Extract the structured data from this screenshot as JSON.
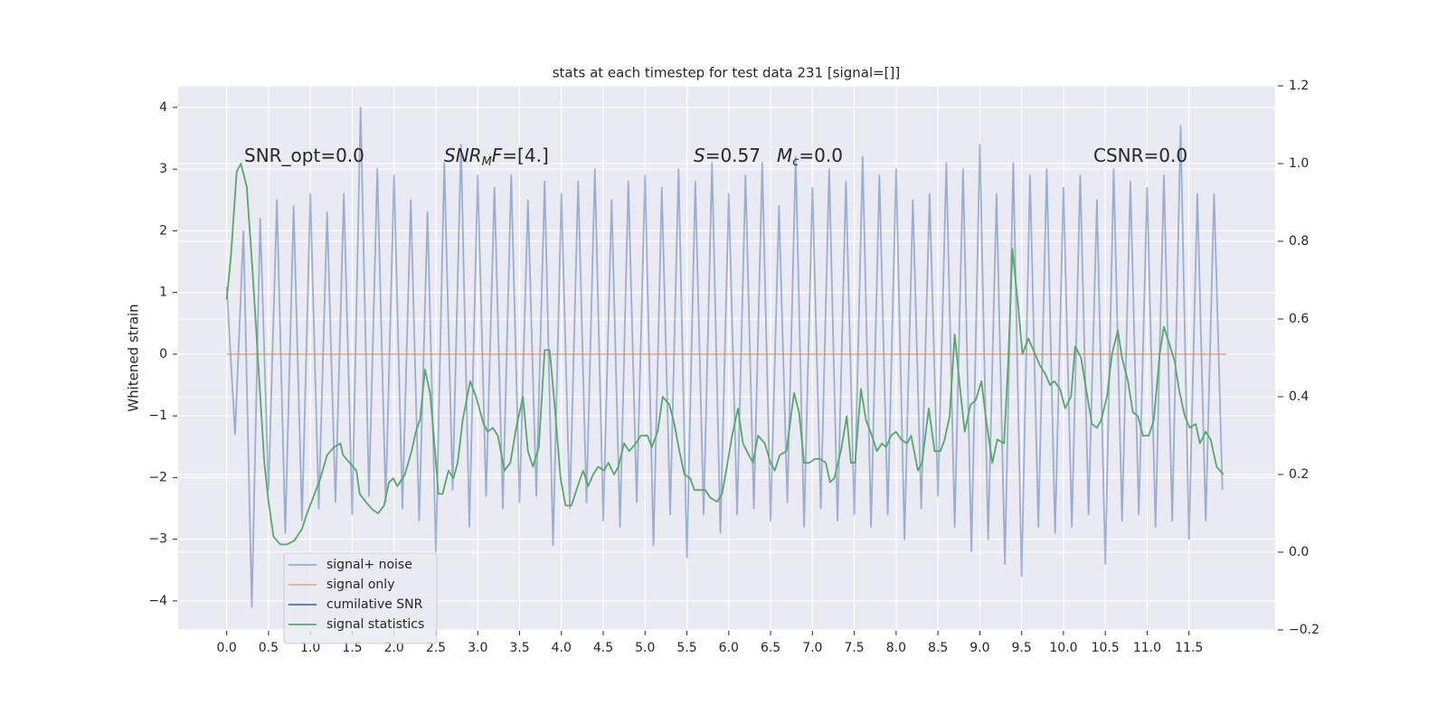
{
  "chart_data": {
    "type": "line",
    "title": "stats at each timestep for test data 231 [signal=[]]",
    "ylabel": "Whitened strain",
    "xlim": [
      -0.58,
      12.53
    ],
    "ylim": [
      -4.47,
      4.35
    ],
    "y2lim": [
      -0.2,
      1.2
    ],
    "xticks": [
      {
        "value": 0,
        "label": "0.0"
      },
      0.5,
      {
        "value": 1,
        "label": "1.0"
      },
      1.5,
      {
        "value": 2,
        "label": "2.0"
      },
      2.5,
      {
        "value": 3,
        "label": "3.0"
      },
      3.5,
      {
        "value": 4,
        "label": "4.0"
      },
      4.5,
      {
        "value": 5,
        "label": "5.0"
      },
      5.5,
      {
        "value": 6,
        "label": "6.0"
      },
      6.5,
      {
        "value": 7,
        "label": "7.0"
      },
      7.5,
      {
        "value": 8,
        "label": "8.0"
      },
      8.5,
      {
        "value": 9,
        "label": "9.0"
      },
      9.5,
      {
        "value": 10,
        "label": "10.0"
      },
      10.5,
      {
        "value": 11,
        "label": "11.0"
      },
      11.5
    ],
    "yticks": [
      {
        "value": -4,
        "label": "−4"
      },
      {
        "value": -3,
        "label": "−3"
      },
      {
        "value": -2,
        "label": "−2"
      },
      {
        "value": -1,
        "label": "−1"
      },
      0,
      1,
      2,
      3,
      4
    ],
    "y2ticks": [
      {
        "value": -0.2,
        "label": "−0.2"
      },
      {
        "value": 0,
        "label": "0.0"
      },
      0.2,
      0.4,
      0.6,
      0.8,
      {
        "value": 1,
        "label": "1.0"
      },
      1.2
    ],
    "grid": true,
    "legend": "lower left",
    "annotations": [
      {
        "parts": [
          {
            "text": "SNR_opt=0.0"
          }
        ]
      },
      {
        "parts": [
          {
            "text": "SNR",
            "italic": true
          },
          {
            "text": "M",
            "italic": true,
            "sub": true
          },
          {
            "text": "F",
            "italic": true
          },
          {
            "text": "=[4.]"
          }
        ]
      },
      {
        "parts": [
          {
            "text": "S",
            "italic": true
          },
          {
            "text": "=0.57"
          }
        ]
      },
      {
        "parts": [
          {
            "text": "M",
            "italic": true
          },
          {
            "text": "c",
            "italic": true,
            "sub": true
          },
          {
            "text": "=0.0"
          }
        ]
      },
      {
        "parts": [
          {
            "text": "CSNR=0.0"
          }
        ]
      }
    ],
    "series": [
      {
        "name": "signal+ noise",
        "color": "#4c72b0",
        "opacity": 0.5,
        "x": [
          0.0,
          0.1,
          0.2,
          0.3,
          0.4,
          0.5,
          0.6,
          0.7,
          0.8,
          0.9,
          1.0,
          1.1,
          1.2,
          1.3,
          1.4,
          1.5,
          1.6,
          1.7,
          1.8,
          1.9,
          2.0,
          2.1,
          2.2,
          2.3,
          2.4,
          2.5,
          2.6,
          2.7,
          2.8,
          2.9,
          3.0,
          3.1,
          3.2,
          3.3,
          3.4,
          3.5,
          3.6,
          3.7,
          3.8,
          3.9,
          4.0,
          4.1,
          4.2,
          4.3,
          4.4,
          4.5,
          4.6,
          4.7,
          4.8,
          4.9,
          5.0,
          5.1,
          5.2,
          5.3,
          5.4,
          5.5,
          5.6,
          5.7,
          5.8,
          5.9,
          6.0,
          6.1,
          6.2,
          6.3,
          6.4,
          6.5,
          6.6,
          6.7,
          6.8,
          6.9,
          7.0,
          7.1,
          7.2,
          7.3,
          7.4,
          7.5,
          7.6,
          7.7,
          7.8,
          7.9,
          8.0,
          8.1,
          8.2,
          8.3,
          8.4,
          8.5,
          8.6,
          8.7,
          8.8,
          8.9,
          9.0,
          9.1,
          9.2,
          9.3,
          9.4,
          9.5,
          9.6,
          9.7,
          9.8,
          9.9,
          10.0,
          10.1,
          10.2,
          10.3,
          10.4,
          10.5,
          10.6,
          10.7,
          10.8,
          10.9,
          11.0,
          11.1,
          11.2,
          11.3,
          11.4,
          11.5,
          11.6,
          11.7,
          11.8,
          11.9
        ],
        "values": [
          1.1,
          -1.3,
          2.0,
          -4.1,
          2.2,
          -2.2,
          2.5,
          -2.9,
          2.4,
          -2.7,
          2.6,
          -2.5,
          2.3,
          -2.4,
          2.6,
          -2.6,
          4.0,
          -2.3,
          3.0,
          -2.4,
          2.9,
          -2.5,
          2.5,
          -2.7,
          2.3,
          -3.2,
          3.1,
          -2.2,
          3.4,
          -2.8,
          2.9,
          -2.3,
          2.7,
          -2.5,
          2.9,
          -2.4,
          2.5,
          -2.3,
          2.8,
          -3.1,
          2.6,
          -2.5,
          2.8,
          -2.4,
          3.0,
          -2.7,
          2.5,
          -2.8,
          2.8,
          -2.4,
          2.9,
          -3.1,
          2.7,
          -2.6,
          3.0,
          -3.3,
          2.8,
          -2.6,
          3.1,
          -2.9,
          2.6,
          -2.6,
          2.9,
          -2.5,
          3.1,
          -2.7,
          2.4,
          -2.4,
          3.2,
          -2.8,
          2.7,
          -2.5,
          3.0,
          -2.7,
          2.8,
          -2.6,
          3.2,
          -2.8,
          2.9,
          -2.6,
          3.0,
          -3.0,
          2.5,
          -2.5,
          2.6,
          -2.3,
          3.1,
          -2.8,
          3.0,
          -3.2,
          3.4,
          -3.0,
          2.6,
          -3.4,
          3.1,
          -3.6,
          2.9,
          -2.8,
          3.0,
          -2.9,
          2.7,
          -2.8,
          2.9,
          -2.6,
          2.5,
          -3.4,
          3.0,
          -2.7,
          2.8,
          -2.6,
          2.7,
          -2.8,
          2.9,
          -2.7,
          3.7,
          -3.0,
          2.6,
          -2.7,
          2.6,
          -2.2
        ]
      },
      {
        "name": "signal only",
        "color": "#dd8452",
        "opacity": 0.6,
        "x": [
          0,
          11.95
        ],
        "values": [
          0,
          0
        ]
      },
      {
        "name": "cumilative SNR",
        "color": "#4c72b0",
        "x": [],
        "values": []
      },
      {
        "name": "signal statistics",
        "color": "#55a868",
        "axis": "y2",
        "x": [
          0,
          0.05,
          0.12,
          0.17,
          0.24,
          0.31,
          0.39,
          0.45,
          0.5,
          0.56,
          0.64,
          0.72,
          0.81,
          0.9,
          0.96,
          1.05,
          1.12,
          1.2,
          1.28,
          1.36,
          1.39,
          1.47,
          1.55,
          1.59,
          1.66,
          1.74,
          1.81,
          1.88,
          1.94,
          1.99,
          2.04,
          2.13,
          2.21,
          2.26,
          2.31,
          2.37,
          2.43,
          2.49,
          2.53,
          2.58,
          2.65,
          2.71,
          2.76,
          2.82,
          2.91,
          2.98,
          3.07,
          3.12,
          3.18,
          3.24,
          3.32,
          3.39,
          3.46,
          3.54,
          3.6,
          3.66,
          3.73,
          3.8,
          3.86,
          3.91,
          3.99,
          4.05,
          4.12,
          4.21,
          4.26,
          4.32,
          4.38,
          4.44,
          4.51,
          4.56,
          4.63,
          4.68,
          4.75,
          4.81,
          4.89,
          4.95,
          5.03,
          5.08,
          5.15,
          5.21,
          5.29,
          5.35,
          5.41,
          5.47,
          5.54,
          5.59,
          5.65,
          5.72,
          5.78,
          5.86,
          5.92,
          5.97,
          6.04,
          6.11,
          6.17,
          6.24,
          6.29,
          6.35,
          6.43,
          6.5,
          6.55,
          6.61,
          6.69,
          6.78,
          6.84,
          6.9,
          6.96,
          7.03,
          7.09,
          7.16,
          7.21,
          7.26,
          7.34,
          7.41,
          7.46,
          7.51,
          7.58,
          7.64,
          7.71,
          7.77,
          7.83,
          7.88,
          7.94,
          8.0,
          8.06,
          8.13,
          8.18,
          8.26,
          8.31,
          8.39,
          8.46,
          8.53,
          8.58,
          8.64,
          8.7,
          8.76,
          8.82,
          8.89,
          8.95,
          9.02,
          9.07,
          9.15,
          9.21,
          9.29,
          9.34,
          9.39,
          9.46,
          9.51,
          9.58,
          9.64,
          9.72,
          9.78,
          9.84,
          9.89,
          9.96,
          10.02,
          10.09,
          10.14,
          10.21,
          10.27,
          10.34,
          10.4,
          10.45,
          10.52,
          10.58,
          10.65,
          10.7,
          10.77,
          10.83,
          10.89,
          10.95,
          11.02,
          11.08,
          11.15,
          11.2,
          11.26,
          11.33,
          11.38,
          11.45,
          11.51,
          11.58,
          11.63,
          11.7,
          11.76,
          11.83,
          11.91
        ],
        "values": [
          0.65,
          0.76,
          0.98,
          1.0,
          0.94,
          0.72,
          0.44,
          0.23,
          0.13,
          0.04,
          0.02,
          0.02,
          0.03,
          0.06,
          0.1,
          0.15,
          0.19,
          0.25,
          0.27,
          0.28,
          0.25,
          0.23,
          0.21,
          0.15,
          0.13,
          0.11,
          0.1,
          0.12,
          0.18,
          0.19,
          0.17,
          0.2,
          0.26,
          0.31,
          0.34,
          0.47,
          0.41,
          0.26,
          0.15,
          0.15,
          0.21,
          0.19,
          0.23,
          0.34,
          0.44,
          0.4,
          0.33,
          0.31,
          0.32,
          0.3,
          0.21,
          0.23,
          0.32,
          0.4,
          0.26,
          0.22,
          0.27,
          0.52,
          0.52,
          0.4,
          0.19,
          0.12,
          0.12,
          0.18,
          0.21,
          0.17,
          0.2,
          0.22,
          0.21,
          0.23,
          0.2,
          0.22,
          0.28,
          0.26,
          0.28,
          0.3,
          0.3,
          0.27,
          0.31,
          0.4,
          0.38,
          0.33,
          0.26,
          0.2,
          0.19,
          0.16,
          0.16,
          0.16,
          0.14,
          0.13,
          0.15,
          0.21,
          0.3,
          0.37,
          0.28,
          0.25,
          0.23,
          0.3,
          0.28,
          0.23,
          0.21,
          0.25,
          0.26,
          0.41,
          0.36,
          0.23,
          0.23,
          0.24,
          0.24,
          0.23,
          0.18,
          0.19,
          0.26,
          0.35,
          0.23,
          0.23,
          0.42,
          0.34,
          0.3,
          0.26,
          0.28,
          0.27,
          0.3,
          0.31,
          0.29,
          0.28,
          0.3,
          0.21,
          0.23,
          0.37,
          0.26,
          0.26,
          0.29,
          0.35,
          0.56,
          0.43,
          0.31,
          0.38,
          0.39,
          0.44,
          0.35,
          0.23,
          0.29,
          0.28,
          0.49,
          0.78,
          0.63,
          0.51,
          0.55,
          0.52,
          0.48,
          0.46,
          0.43,
          0.44,
          0.42,
          0.37,
          0.4,
          0.53,
          0.5,
          0.42,
          0.33,
          0.32,
          0.34,
          0.4,
          0.51,
          0.57,
          0.5,
          0.44,
          0.36,
          0.35,
          0.3,
          0.3,
          0.34,
          0.51,
          0.58,
          0.54,
          0.49,
          0.42,
          0.35,
          0.32,
          0.33,
          0.28,
          0.31,
          0.29,
          0.22,
          0.2
        ]
      }
    ]
  }
}
